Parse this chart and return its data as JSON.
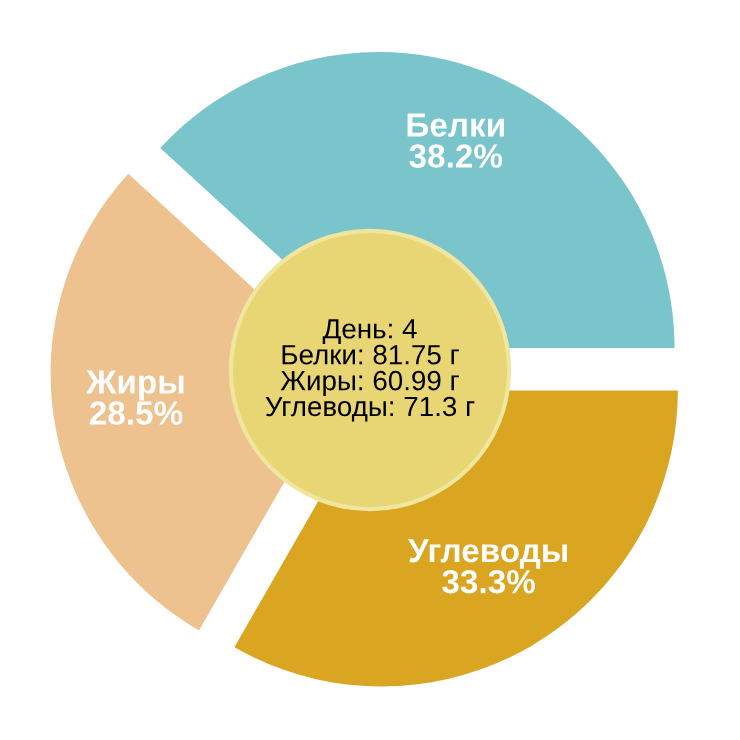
{
  "chart_data": {
    "type": "pie",
    "categories": [
      "Белки",
      "Жиры",
      "Углеводы"
    ],
    "values": [
      38.2,
      28.5,
      33.3
    ],
    "colors": [
      "#7ac4cc",
      "#edc28f",
      "#daa520"
    ],
    "value_labels": [
      "38.2%",
      "28.5%",
      "33.3%"
    ],
    "annotations": [
      "День: 4",
      "Белки: 81.75 г",
      "Жиры: 60.99 г",
      "Углеводы: 71.3 г"
    ]
  }
}
